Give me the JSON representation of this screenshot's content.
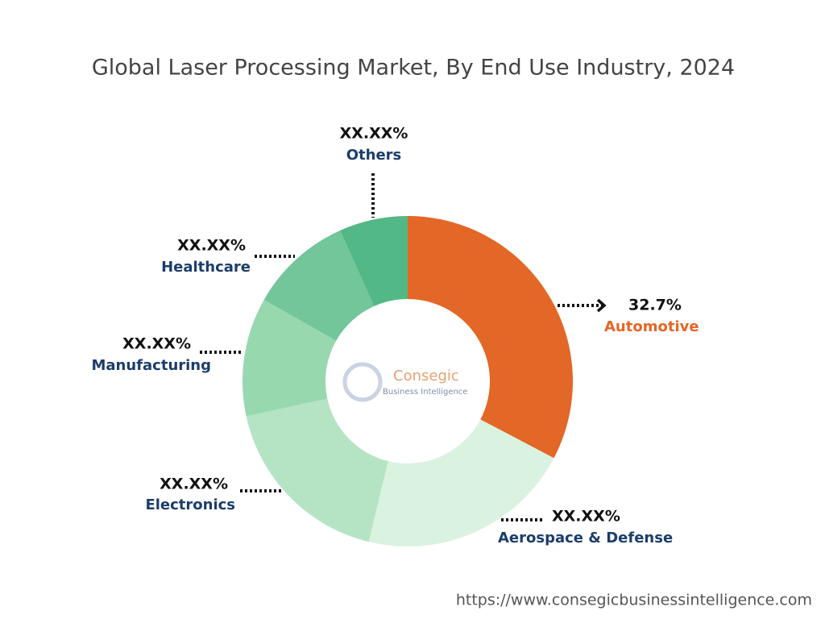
{
  "chart_data": {
    "type": "pie",
    "title": "Global Laser Processing Market, By End Use Industry, 2024",
    "categories": [
      "Automotive",
      "Aerospace & Defense",
      "Electronics",
      "Manufacturing",
      "Healthcare",
      "Others"
    ],
    "values": [
      32.7,
      21.1,
      17.8,
      11.6,
      10.1,
      6.7
    ],
    "value_labels": [
      "32.7%",
      "XX.XX%",
      "XX.XX%",
      "XX.XX%",
      "XX.XX%",
      "XX.XX%"
    ],
    "colors": [
      "#e36726",
      "#daf2e0",
      "#b5e4c5",
      "#97d8ae",
      "#72c69a",
      "#52b887"
    ],
    "label_colors": [
      "#e36726",
      "#1c3d6b",
      "#1c3d6b",
      "#1c3d6b",
      "#1c3d6b",
      "#1c3d6b"
    ],
    "logo_title": "Consegic",
    "logo_subtitle": "Business Intelligence",
    "source": "https://www.consegicbusinessintelligence.com"
  }
}
